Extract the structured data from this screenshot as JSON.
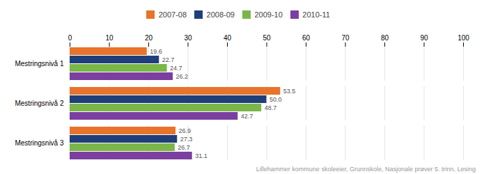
{
  "chart_data": {
    "type": "bar",
    "orientation": "horizontal",
    "categories": [
      "Mestringsnivå 1",
      "Mestringsnivå 2",
      "Mestringsnivå 3"
    ],
    "series": [
      {
        "name": "2007-08",
        "color": "#E8732A",
        "values": [
          19.6,
          53.5,
          26.9
        ],
        "value_labels": [
          "19.6",
          "53.5",
          "26.9"
        ]
      },
      {
        "name": "2008-09",
        "color": "#1F3F7A",
        "values": [
          22.7,
          50.0,
          27.3
        ],
        "value_labels": [
          "22.7",
          "50.0",
          "27.3"
        ]
      },
      {
        "name": "2009-10",
        "color": "#7AB648",
        "values": [
          24.7,
          48.7,
          26.7
        ],
        "value_labels": [
          "24.7",
          "48.7",
          "26.7"
        ]
      },
      {
        "name": "2010-11",
        "color": "#7B3FA0",
        "values": [
          26.2,
          42.7,
          31.1
        ],
        "value_labels": [
          "26.2",
          "42.7",
          "31.1"
        ]
      }
    ],
    "xlim": [
      0,
      100
    ],
    "xticks": [
      0,
      10,
      20,
      30,
      40,
      50,
      60,
      70,
      80,
      90,
      100
    ],
    "grid": true,
    "data_labels": true,
    "legend": "top",
    "caption": "Lillehammer kommune skoleeier, Grunnskole, Nasjonale prøver 5. trinn, Lesing"
  }
}
